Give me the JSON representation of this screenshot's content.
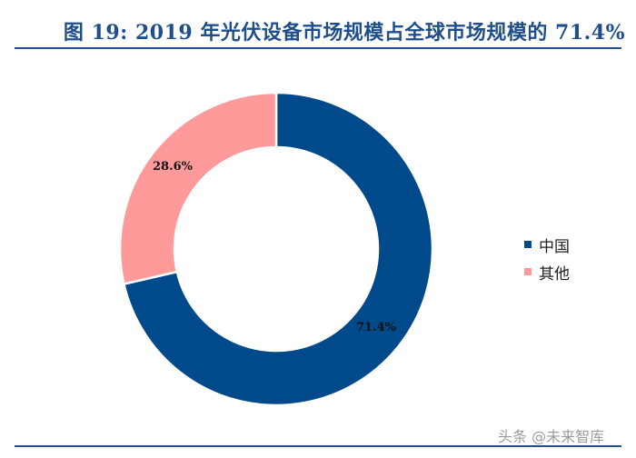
{
  "title": "图 19: 2019 年光伏设备市场规模占全球市场规模的 71.4%",
  "watermark": "头条 @未来智库",
  "colors": {
    "title": "#1f4e8c",
    "china": "#004a8c",
    "other": "#ff9a9a"
  },
  "chart_data": {
    "type": "pie",
    "donut": true,
    "title": "",
    "legend_position": "right",
    "categories": [
      "中国",
      "其他"
    ],
    "values": [
      71.4,
      28.6
    ],
    "labels": [
      "71.4%",
      "28.6%"
    ]
  }
}
